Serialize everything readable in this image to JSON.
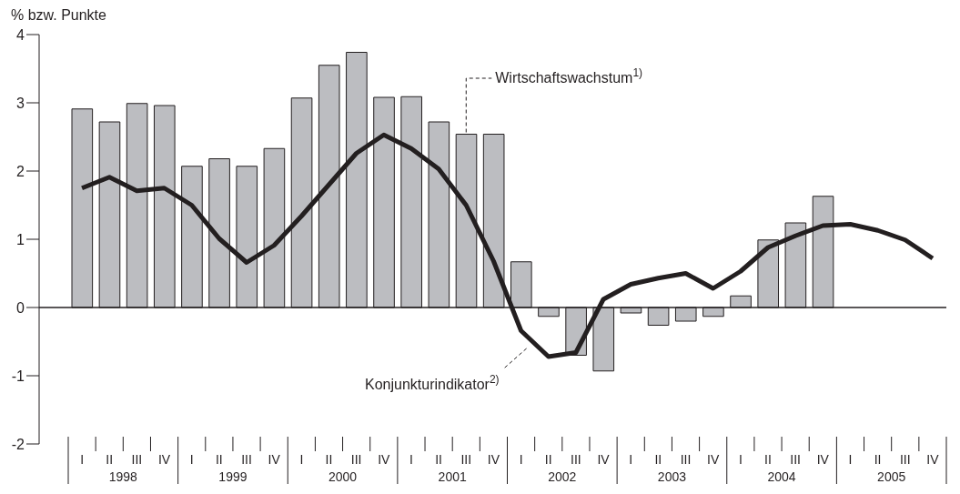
{
  "chart_data": {
    "type": "bar",
    "ylabel": "% bzw. Punkte",
    "categories": [
      "I",
      "II",
      "III",
      "IV",
      "I",
      "II",
      "III",
      "IV",
      "I",
      "II",
      "III",
      "IV",
      "I",
      "II",
      "III",
      "IV",
      "I",
      "II",
      "III",
      "IV",
      "I",
      "II",
      "III",
      "IV",
      "I",
      "II",
      "III",
      "IV",
      "I",
      "II",
      "III",
      "IV"
    ],
    "annotations": [
      "1998",
      "1999",
      "2000",
      "2001",
      "2002",
      "2003",
      "2004",
      "2005"
    ],
    "series": [
      {
        "name": "Wirtschaftswachstum$^{1)}$",
        "color": "#bcbdc1",
        "values": [
          2.91,
          2.72,
          2.99,
          2.96,
          2.07,
          2.18,
          2.07,
          2.33,
          3.07,
          3.55,
          3.74,
          3.08,
          3.09,
          2.72,
          2.54,
          2.54,
          0.67,
          -0.13,
          -0.7,
          -0.93,
          -0.08,
          -0.26,
          -0.2,
          -0.13,
          0.17,
          0.99,
          1.24,
          1.63,
          null,
          null,
          null,
          null
        ]
      },
      {
        "name": "Konjunkturindikator$^{2)}$",
        "type": "line",
        "color": "#231f20",
        "values": [
          1.75,
          1.91,
          1.71,
          1.75,
          1.5,
          1.01,
          0.66,
          0.91,
          1.34,
          1.8,
          2.26,
          2.53,
          2.33,
          2.03,
          1.5,
          0.68,
          -0.34,
          -0.72,
          -0.66,
          0.12,
          0.34,
          0.43,
          0.5,
          0.28,
          0.53,
          0.88,
          1.05,
          1.2,
          1.22,
          1.13,
          0.99,
          0.72
        ]
      }
    ],
    "ylim": [
      -2,
      4
    ],
    "yticks": [
      -2,
      -1,
      0,
      1,
      2,
      3,
      4
    ],
    "ref_lines": [
      {
        "axis": "y",
        "value": 0,
        "color": "#231f20"
      }
    ],
    "grid": false,
    "legend": false,
    "marker": "none",
    "line_style": "solid"
  }
}
